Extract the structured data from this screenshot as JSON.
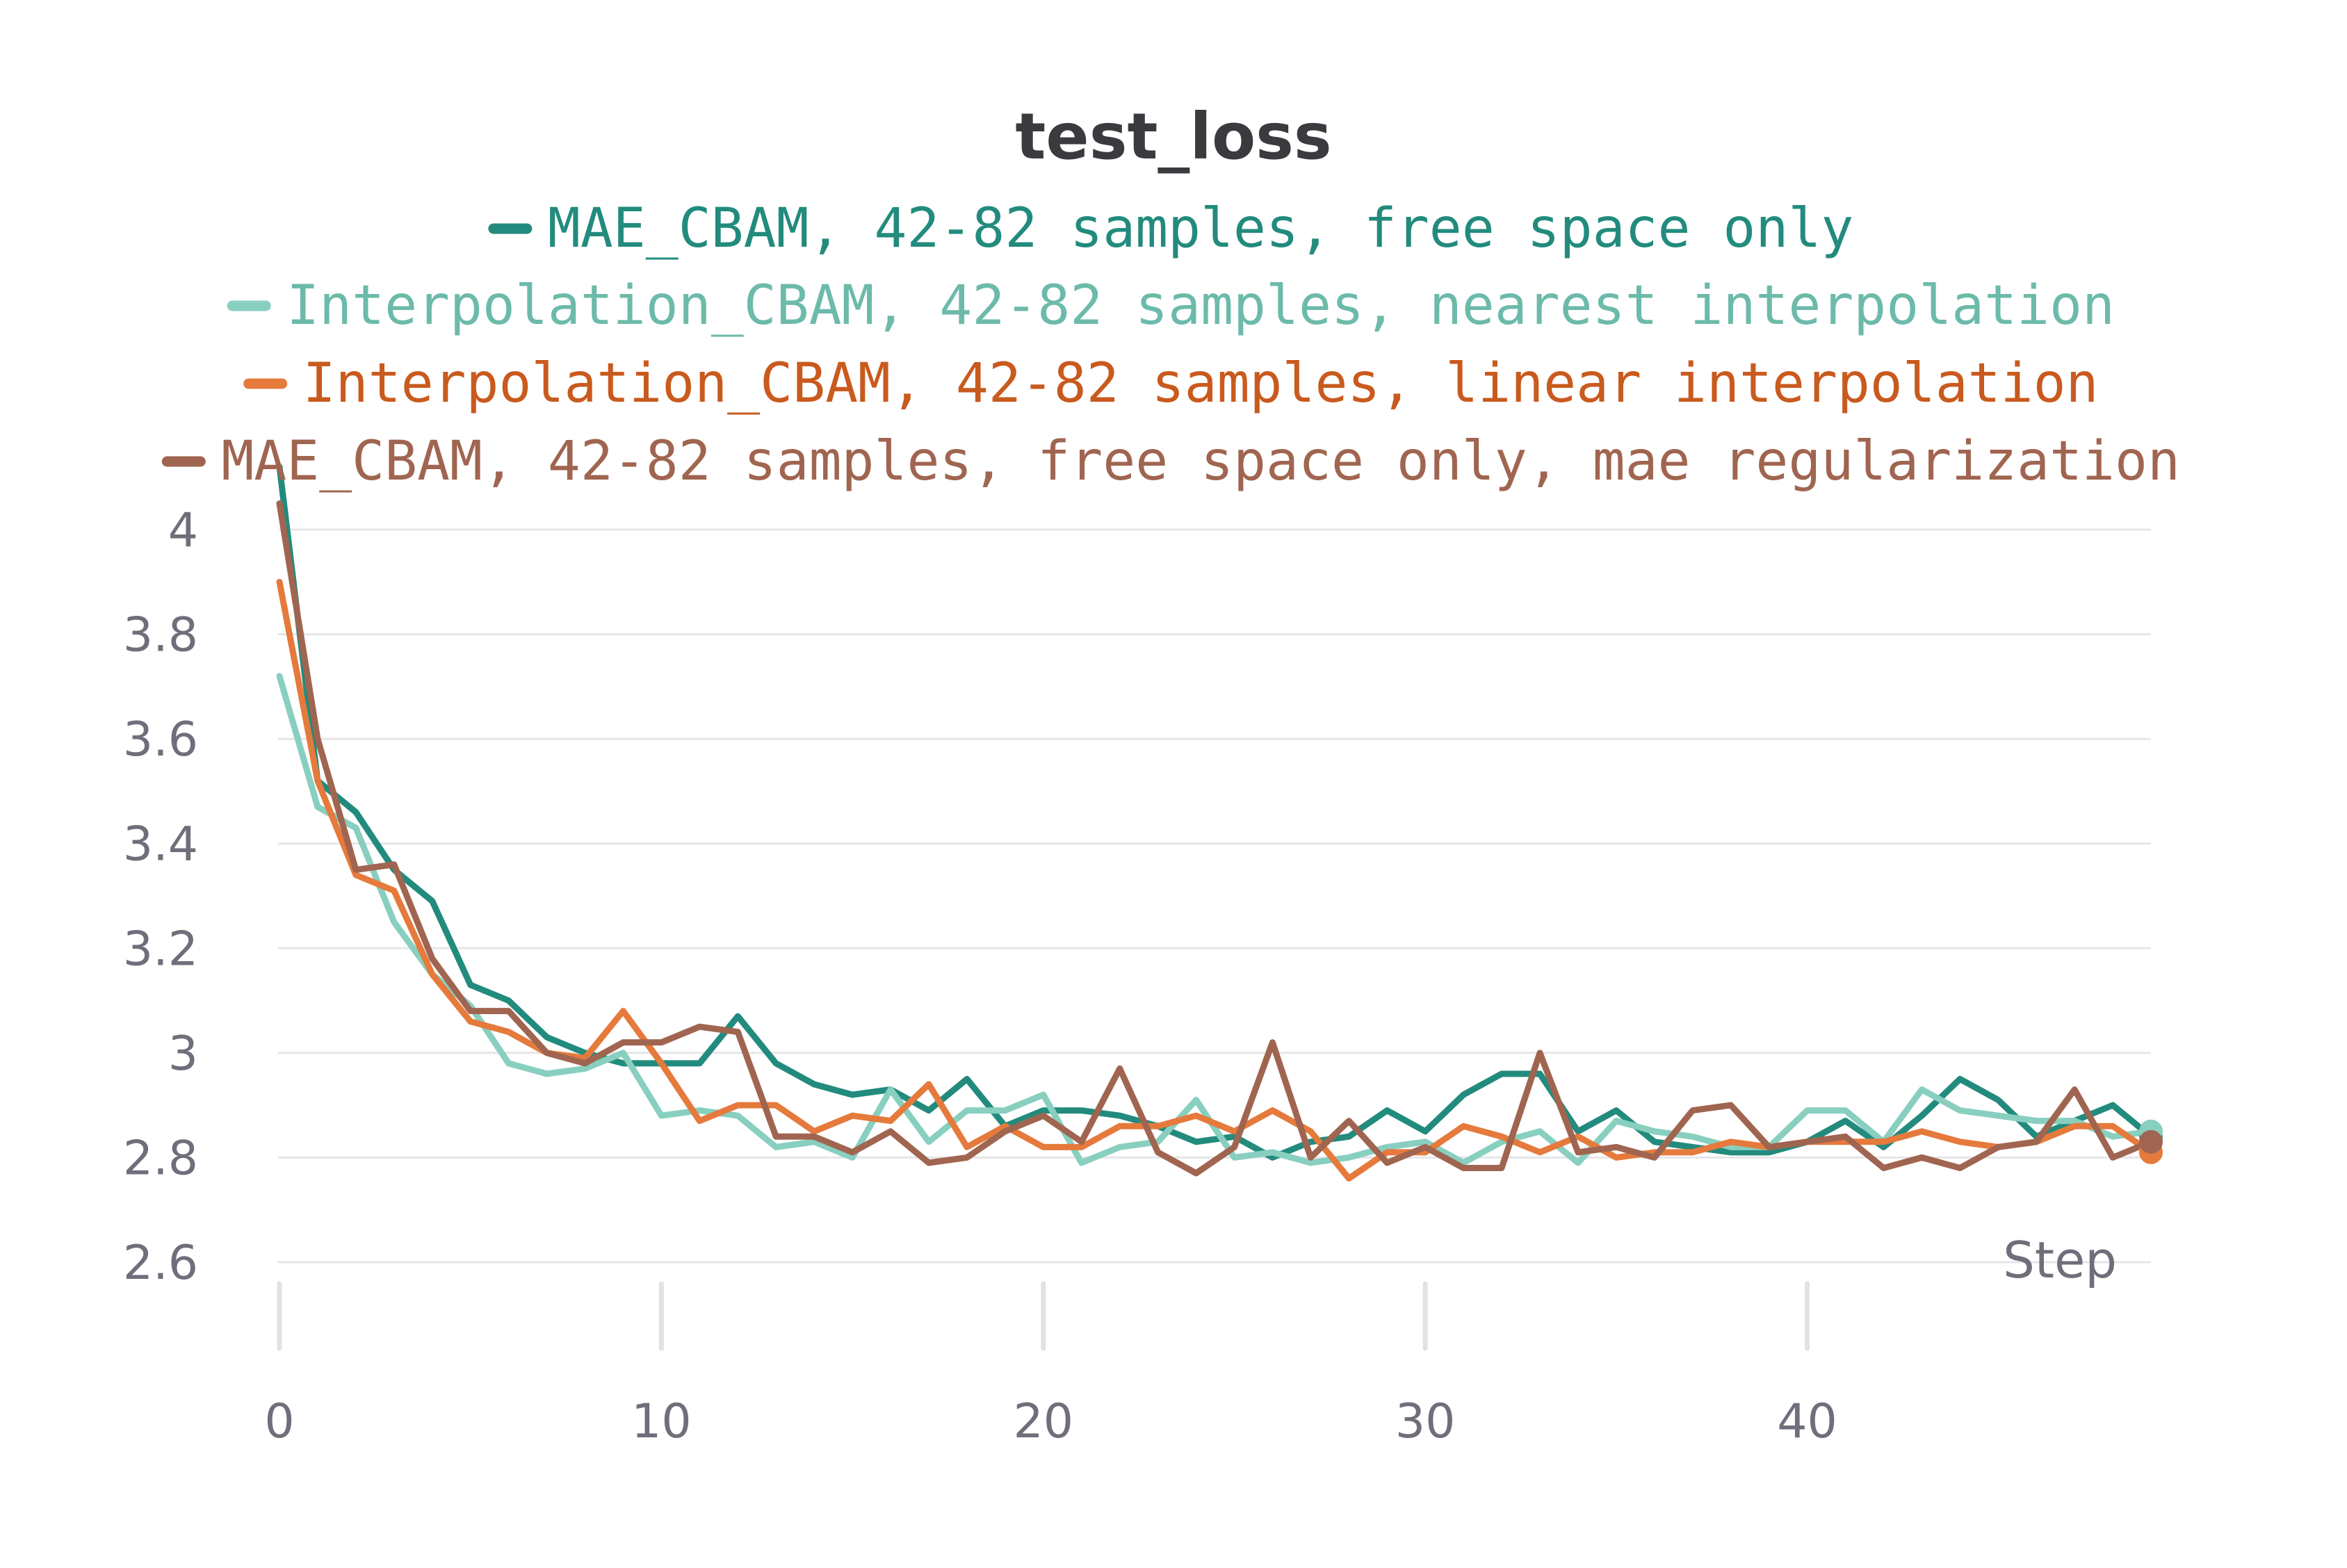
{
  "chart_data": {
    "type": "line",
    "title": "test_loss",
    "xlabel": "Step",
    "ylabel": "",
    "xlim": [
      0,
      49
    ],
    "ylim": [
      2.6,
      4.0
    ],
    "x_ticks": [
      0,
      10,
      20,
      30,
      40
    ],
    "y_ticks": [
      2.6,
      2.8,
      3.0,
      3.2,
      3.4,
      3.6,
      3.8,
      4.0
    ],
    "y_tick_labels": [
      "2.6",
      "2.8",
      "3",
      "3.2",
      "3.4",
      "3.6",
      "3.8",
      "4"
    ],
    "x_tick_labels": [
      "0",
      "10",
      "20",
      "30",
      "40"
    ],
    "grid": true,
    "legend_position": "top",
    "x": [
      0,
      1,
      2,
      3,
      4,
      5,
      6,
      7,
      8,
      9,
      10,
      11,
      12,
      13,
      14,
      15,
      16,
      17,
      18,
      19,
      20,
      21,
      22,
      23,
      24,
      25,
      26,
      27,
      28,
      29,
      30,
      31,
      32,
      33,
      34,
      35,
      36,
      37,
      38,
      39,
      40,
      41,
      42,
      43,
      44,
      45,
      46,
      47,
      48,
      49
    ],
    "series": [
      {
        "name": "MAE_CBAM, 42-82 samples, free space only",
        "color": "#228b7d",
        "values": [
          4.12,
          3.52,
          3.46,
          3.35,
          3.29,
          3.13,
          3.1,
          3.03,
          3.0,
          2.98,
          2.98,
          2.98,
          3.07,
          2.98,
          2.94,
          2.92,
          2.93,
          2.89,
          2.95,
          2.86,
          2.89,
          2.89,
          2.88,
          2.86,
          2.83,
          2.84,
          2.8,
          2.83,
          2.84,
          2.89,
          2.85,
          2.92,
          2.96,
          2.96,
          2.85,
          2.89,
          2.83,
          2.82,
          2.81,
          2.81,
          2.83,
          2.87,
          2.82,
          2.88,
          2.95,
          2.91,
          2.84,
          2.87,
          2.9,
          2.84
        ]
      },
      {
        "name": "Interpolation_CBAM, 42-82 samples, nearest interpolation",
        "color": "#88cfc0",
        "values": [
          3.72,
          3.47,
          3.43,
          3.25,
          3.15,
          3.09,
          2.98,
          2.96,
          2.97,
          3.0,
          2.88,
          2.89,
          2.88,
          2.82,
          2.83,
          2.8,
          2.93,
          2.83,
          2.89,
          2.89,
          2.92,
          2.79,
          2.82,
          2.83,
          2.91,
          2.8,
          2.81,
          2.79,
          2.8,
          2.82,
          2.83,
          2.79,
          2.83,
          2.85,
          2.79,
          2.87,
          2.85,
          2.84,
          2.82,
          2.82,
          2.89,
          2.89,
          2.83,
          2.93,
          2.89,
          2.88,
          2.87,
          2.87,
          2.84,
          2.85
        ]
      },
      {
        "name": "Interpolation_CBAM, 42-82 samples, linear interpolation",
        "color": "#e57a3c",
        "values": [
          3.9,
          3.52,
          3.34,
          3.31,
          3.15,
          3.06,
          3.04,
          3.0,
          2.99,
          3.08,
          2.98,
          2.87,
          2.9,
          2.9,
          2.85,
          2.88,
          2.87,
          2.94,
          2.82,
          2.86,
          2.82,
          2.82,
          2.86,
          2.86,
          2.88,
          2.85,
          2.89,
          2.85,
          2.76,
          2.81,
          2.81,
          2.86,
          2.84,
          2.81,
          2.84,
          2.8,
          2.81,
          2.81,
          2.83,
          2.82,
          2.83,
          2.83,
          2.83,
          2.85,
          2.83,
          2.82,
          2.83,
          2.86,
          2.86,
          2.81
        ]
      },
      {
        "name": "MAE_CBAM, 42-82 samples, free space only, mae regularization",
        "color": "#a06550",
        "values": [
          4.05,
          3.6,
          3.35,
          3.36,
          3.18,
          3.08,
          3.08,
          3.0,
          2.98,
          3.02,
          3.02,
          3.05,
          3.04,
          2.84,
          2.84,
          2.81,
          2.85,
          2.79,
          2.8,
          2.85,
          2.88,
          2.83,
          2.97,
          2.81,
          2.77,
          2.82,
          3.02,
          2.8,
          2.87,
          2.79,
          2.82,
          2.78,
          2.78,
          3.0,
          2.81,
          2.82,
          2.8,
          2.89,
          2.9,
          2.82,
          2.83,
          2.84,
          2.78,
          2.8,
          2.78,
          2.82,
          2.83,
          2.93,
          2.8,
          2.83
        ]
      }
    ]
  }
}
